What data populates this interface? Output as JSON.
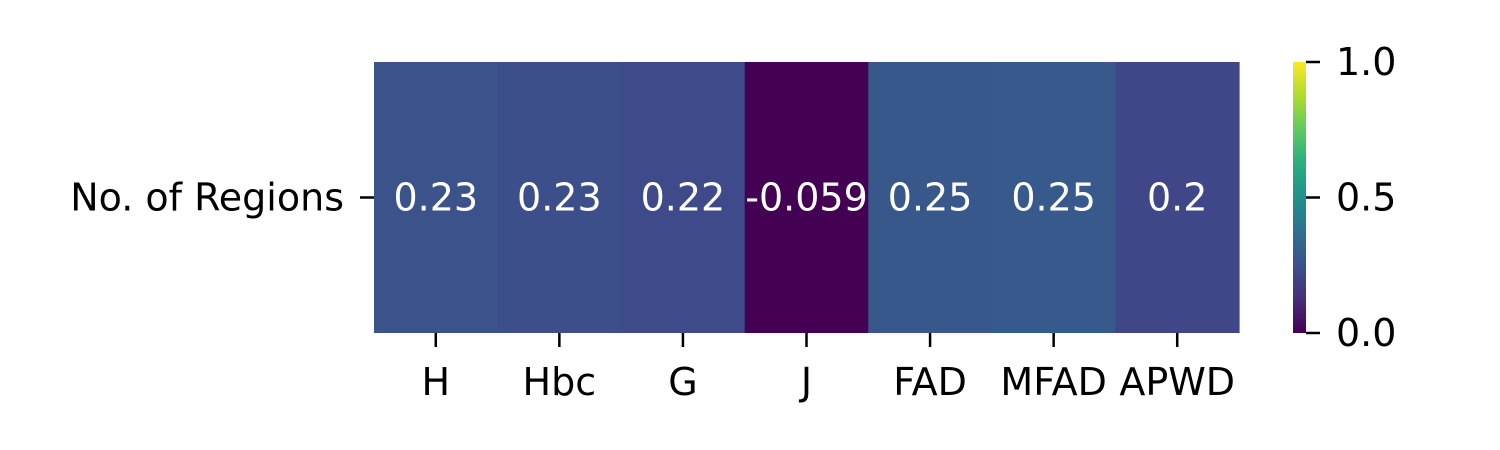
{
  "chart_data": {
    "type": "heatmap",
    "title": "",
    "xlabel": "",
    "ylabel": "",
    "rows": [
      "No. of Regions"
    ],
    "columns": [
      "H",
      "Hbc",
      "G",
      "J",
      "FAD",
      "MFAD",
      "APWD"
    ],
    "values": [
      [
        0.23,
        0.23,
        0.22,
        -0.059,
        0.25,
        0.25,
        0.2
      ]
    ],
    "value_labels": [
      [
        "0.23",
        "0.23",
        "0.22",
        "-0.059",
        "0.25",
        "0.25",
        "0.2"
      ]
    ],
    "colormap": "viridis",
    "colorbar": {
      "vmin": 0.0,
      "vmax": 1.0,
      "ticks": [
        0.0,
        0.5,
        1.0
      ],
      "tick_labels": [
        "0.0",
        "0.5",
        "1.0"
      ]
    },
    "cell_colors": [
      [
        "#3b528b",
        "#3c4f8a",
        "#3e4a89",
        "#440154",
        "#38588c",
        "#38598c",
        "#3f4788"
      ]
    ],
    "grid": false
  }
}
